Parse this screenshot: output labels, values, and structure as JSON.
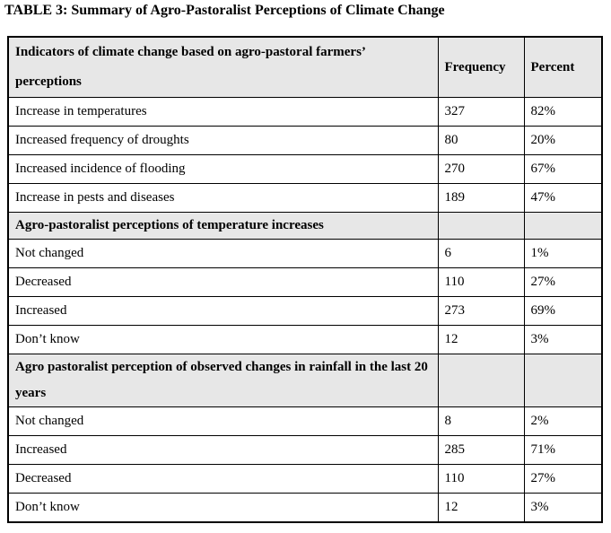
{
  "title": "TABLE 3: Summary of Agro-Pastoralist Perceptions of Climate Change",
  "colors": {
    "section_header_bg": "#e7e7e7",
    "border": "#000000",
    "text": "#000000",
    "page_bg": "#ffffff"
  },
  "table": {
    "header": {
      "indicators": "Indicators of climate change based on agro-pastoral farmers’ perceptions",
      "frequency": "Frequency",
      "percent": "Percent"
    },
    "rows": [
      {
        "type": "data",
        "label": "Increase in temperatures",
        "frequency": "327",
        "percent": "82%"
      },
      {
        "type": "data",
        "label": "Increased frequency of droughts",
        "frequency": "80",
        "percent": "20%"
      },
      {
        "type": "data",
        "label": "Increased incidence of flooding",
        "frequency": "270",
        "percent": "67%"
      },
      {
        "type": "data",
        "label": "Increase in pests and diseases",
        "frequency": "189",
        "percent": "47%"
      },
      {
        "type": "section",
        "label": "Agro-pastoralist perceptions of temperature increases",
        "frequency": "",
        "percent": ""
      },
      {
        "type": "data",
        "label": "Not changed",
        "frequency": "6",
        "percent": "1%"
      },
      {
        "type": "data",
        "label": "Decreased",
        "frequency": "110",
        "percent": "27%"
      },
      {
        "type": "data",
        "label": "Increased",
        "frequency": "273",
        "percent": "69%"
      },
      {
        "type": "data",
        "label": "Don’t know",
        "frequency": "12",
        "percent": "3%"
      },
      {
        "type": "section",
        "label": "Agro pastoralist perception of observed changes in rainfall in the last 20 years",
        "frequency": "",
        "percent": ""
      },
      {
        "type": "data",
        "label": "Not changed",
        "frequency": "8",
        "percent": "2%"
      },
      {
        "type": "data",
        "label": "Increased",
        "frequency": "285",
        "percent": "71%"
      },
      {
        "type": "data",
        "label": "Decreased",
        "frequency": "110",
        "percent": "27%"
      },
      {
        "type": "data",
        "label": "Don’t know",
        "frequency": "12",
        "percent": "3%"
      }
    ]
  }
}
